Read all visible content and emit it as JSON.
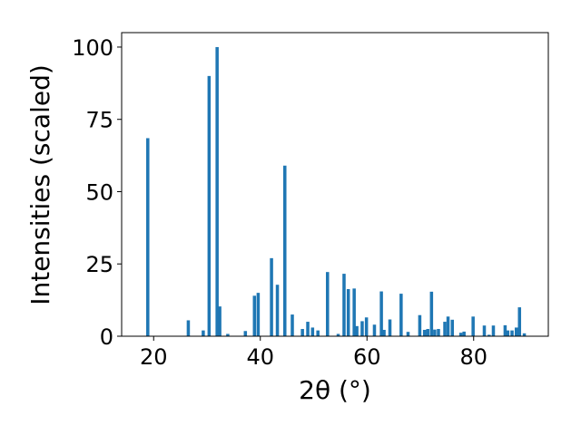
{
  "colors": {
    "bar": "#1f77b4",
    "axis": "#000000",
    "background": "#ffffff"
  },
  "chart_data": {
    "type": "bar",
    "title": "",
    "xlabel": "2θ (°)",
    "ylabel": "Intensities (scaled)",
    "xlim": [
      14,
      94
    ],
    "ylim": [
      0,
      105
    ],
    "xticks": [
      20,
      40,
      60,
      80
    ],
    "yticks": [
      0,
      25,
      50,
      75,
      100
    ],
    "grid": false,
    "legend": "none",
    "bar_width": 0.6,
    "x": [
      18.9,
      26.5,
      29.3,
      30.4,
      31.9,
      32.4,
      33.9,
      37.2,
      38.9,
      39.6,
      42.1,
      43.2,
      44.6,
      46.0,
      47.9,
      48.9,
      49.8,
      50.8,
      52.6,
      54.6,
      55.7,
      56.5,
      57.6,
      58.1,
      59.1,
      59.9,
      61.4,
      62.7,
      63.2,
      64.3,
      66.4,
      67.7,
      69.9,
      70.8,
      71.4,
      72.1,
      72.7,
      73.4,
      74.6,
      75.2,
      76.0,
      77.6,
      78.2,
      79.9,
      82.0,
      82.9,
      83.7,
      85.9,
      86.4,
      87.2,
      88.0,
      88.6,
      89.5
    ],
    "y": [
      68.5,
      5.5,
      2.0,
      90.0,
      100.0,
      10.3,
      0.8,
      1.8,
      14.0,
      15.0,
      27.0,
      17.8,
      59.0,
      7.5,
      2.5,
      5.0,
      3.0,
      2.0,
      22.2,
      0.8,
      21.6,
      16.3,
      16.5,
      3.5,
      5.2,
      6.5,
      4.0,
      15.5,
      2.2,
      5.8,
      14.7,
      1.5,
      7.3,
      2.2,
      2.5,
      15.4,
      2.3,
      2.5,
      5.0,
      6.8,
      5.7,
      1.2,
      1.6,
      6.8,
      3.7,
      0.5,
      3.7,
      3.8,
      2.0,
      2.0,
      3.0,
      10.0,
      1.0
    ]
  }
}
